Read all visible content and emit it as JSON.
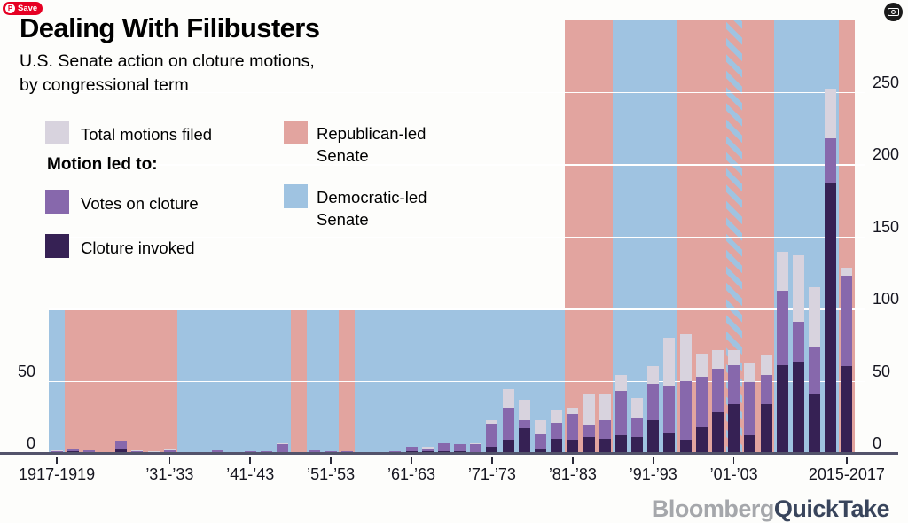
{
  "save_button": {
    "label": "Save",
    "brand_letter": "P"
  },
  "header": {
    "title": "Dealing With Filibusters",
    "subtitle_line1": "U.S. Senate action on cloture motions,",
    "subtitle_line2": "by congressional term"
  },
  "legend": {
    "total_label": "Total motions filed",
    "motion_header": "Motion led to:",
    "votes_label": "Votes on cloture",
    "invoked_label": "Cloture invoked",
    "republican_label": "Republican-led Senate",
    "democratic_label": "Democratic-led Senate"
  },
  "colors": {
    "total_filed": "#d8d3de",
    "votes_on_cloture": "#8768ac",
    "cloture_invoked": "#362154",
    "republican_band": "#e2a49f",
    "democratic_band": "#9fc3e1",
    "split_band_stripe": "#9fc3e1",
    "gridline": "#ffffff",
    "axis_line": "#53536b",
    "save_red": "#e60023",
    "logo_gray": "#a5a7ab",
    "logo_dark": "#39455c",
    "icon_circle": "#1b1b1b"
  },
  "footer": {
    "brand": "Bloomberg",
    "product": "QuickTake"
  },
  "chart_data": {
    "type": "bar",
    "subtype": "stacked",
    "title": "Dealing With Filibusters",
    "series_names": [
      "Total motions filed",
      "Votes on cloture",
      "Cloture invoked"
    ],
    "background_bands_legend": {
      "R": "Republican-led Senate",
      "D": "Democratic-led Senate",
      "S": "Split control (striped)"
    },
    "y_axis": {
      "min": 0,
      "max": 300,
      "left_ticks": [
        0,
        50
      ],
      "right_ticks": [
        0,
        50,
        100,
        150,
        200,
        250
      ],
      "grid_values": [
        50,
        100,
        150,
        200,
        250
      ]
    },
    "x_axis": {
      "ticks": [
        {
          "index": 0,
          "label": "1917-1919"
        },
        {
          "index": 7,
          "label": "’31-’33"
        },
        {
          "index": 12,
          "label": "’41-’43"
        },
        {
          "index": 17,
          "label": "’51-’53"
        },
        {
          "index": 22,
          "label": "’61-’63"
        },
        {
          "index": 27,
          "label": "’71-’73"
        },
        {
          "index": 32,
          "label": "’81-’83"
        },
        {
          "index": 37,
          "label": "’91-’93"
        },
        {
          "index": 42,
          "label": "’01-’03"
        },
        {
          "index": 49,
          "label": "2015-2017"
        }
      ]
    },
    "terms": [
      {
        "years": "1917-1919",
        "party": "D",
        "filed": 2,
        "votes": 1,
        "invoked": 0
      },
      {
        "years": "1919-1921",
        "party": "R",
        "filed": 3,
        "votes": 3,
        "invoked": 1
      },
      {
        "years": "1921-1923",
        "party": "R",
        "filed": 2,
        "votes": 2,
        "invoked": 0
      },
      {
        "years": "1923-1925",
        "party": "R",
        "filed": 0,
        "votes": 0,
        "invoked": 0
      },
      {
        "years": "1925-1927",
        "party": "R",
        "filed": 8,
        "votes": 8,
        "invoked": 3
      },
      {
        "years": "1927-1929",
        "party": "R",
        "filed": 2,
        "votes": 1,
        "invoked": 0
      },
      {
        "years": "1929-1931",
        "party": "R",
        "filed": 1,
        "votes": 0,
        "invoked": 0
      },
      {
        "years": "1931-1933",
        "party": "R",
        "filed": 3,
        "votes": 2,
        "invoked": 0
      },
      {
        "years": "1933-1935",
        "party": "D",
        "filed": 0,
        "votes": 0,
        "invoked": 0
      },
      {
        "years": "1935-1937",
        "party": "D",
        "filed": 0,
        "votes": 0,
        "invoked": 0
      },
      {
        "years": "1937-1939",
        "party": "D",
        "filed": 2,
        "votes": 2,
        "invoked": 0
      },
      {
        "years": "1939-1941",
        "party": "D",
        "filed": 0,
        "votes": 0,
        "invoked": 0
      },
      {
        "years": "1941-1943",
        "party": "D",
        "filed": 1,
        "votes": 1,
        "invoked": 0
      },
      {
        "years": "1943-1945",
        "party": "D",
        "filed": 1,
        "votes": 1,
        "invoked": 0
      },
      {
        "years": "1945-1947",
        "party": "D",
        "filed": 7,
        "votes": 6,
        "invoked": 0
      },
      {
        "years": "1947-1949",
        "party": "R",
        "filed": 0,
        "votes": 0,
        "invoked": 0
      },
      {
        "years": "1949-1951",
        "party": "D",
        "filed": 2,
        "votes": 2,
        "invoked": 0
      },
      {
        "years": "1951-1953",
        "party": "D",
        "filed": 1,
        "votes": 1,
        "invoked": 0
      },
      {
        "years": "1953-1955",
        "party": "R",
        "filed": 1,
        "votes": 1,
        "invoked": 0
      },
      {
        "years": "1955-1957",
        "party": "D",
        "filed": 0,
        "votes": 0,
        "invoked": 0
      },
      {
        "years": "1957-1959",
        "party": "D",
        "filed": 0,
        "votes": 0,
        "invoked": 0
      },
      {
        "years": "1959-1961",
        "party": "D",
        "filed": 1,
        "votes": 1,
        "invoked": 0
      },
      {
        "years": "1961-1963",
        "party": "D",
        "filed": 4,
        "votes": 4,
        "invoked": 1
      },
      {
        "years": "1963-1965",
        "party": "D",
        "filed": 4,
        "votes": 3,
        "invoked": 1
      },
      {
        "years": "1965-1967",
        "party": "D",
        "filed": 7,
        "votes": 7,
        "invoked": 1
      },
      {
        "years": "1967-1969",
        "party": "D",
        "filed": 6,
        "votes": 6,
        "invoked": 1
      },
      {
        "years": "1969-1971",
        "party": "D",
        "filed": 7,
        "votes": 6,
        "invoked": 0
      },
      {
        "years": "1971-1973",
        "party": "D",
        "filed": 23,
        "votes": 20,
        "invoked": 4
      },
      {
        "years": "1973-1975",
        "party": "D",
        "filed": 44,
        "votes": 31,
        "invoked": 9
      },
      {
        "years": "1975-1977",
        "party": "D",
        "filed": 37,
        "votes": 23,
        "invoked": 17
      },
      {
        "years": "1977-1979",
        "party": "D",
        "filed": 23,
        "votes": 13,
        "invoked": 3
      },
      {
        "years": "1979-1981",
        "party": "D",
        "filed": 30,
        "votes": 21,
        "invoked": 10
      },
      {
        "years": "1981-1983",
        "party": "R",
        "filed": 31,
        "votes": 27,
        "invoked": 9
      },
      {
        "years": "1983-1985",
        "party": "R",
        "filed": 41,
        "votes": 19,
        "invoked": 11
      },
      {
        "years": "1985-1987",
        "party": "R",
        "filed": 41,
        "votes": 23,
        "invoked": 10
      },
      {
        "years": "1987-1989",
        "party": "D",
        "filed": 54,
        "votes": 43,
        "invoked": 12
      },
      {
        "years": "1989-1991",
        "party": "D",
        "filed": 38,
        "votes": 24,
        "invoked": 11
      },
      {
        "years": "1991-1993",
        "party": "D",
        "filed": 60,
        "votes": 48,
        "invoked": 23
      },
      {
        "years": "1993-1995",
        "party": "D",
        "filed": 80,
        "votes": 46,
        "invoked": 14
      },
      {
        "years": "1995-1997",
        "party": "R",
        "filed": 82,
        "votes": 50,
        "invoked": 9
      },
      {
        "years": "1997-1999",
        "party": "R",
        "filed": 69,
        "votes": 53,
        "invoked": 18
      },
      {
        "years": "1999-2001",
        "party": "R",
        "filed": 71,
        "votes": 58,
        "invoked": 28
      },
      {
        "years": "2001-2003",
        "party": "S",
        "filed": 71,
        "votes": 61,
        "invoked": 34
      },
      {
        "years": "2003-2005",
        "party": "R",
        "filed": 62,
        "votes": 49,
        "invoked": 12
      },
      {
        "years": "2005-2007",
        "party": "R",
        "filed": 68,
        "votes": 54,
        "invoked": 34
      },
      {
        "years": "2007-2009",
        "party": "D",
        "filed": 139,
        "votes": 112,
        "invoked": 61
      },
      {
        "years": "2009-2011",
        "party": "D",
        "filed": 137,
        "votes": 91,
        "invoked": 63
      },
      {
        "years": "2011-2013",
        "party": "D",
        "filed": 115,
        "votes": 73,
        "invoked": 41
      },
      {
        "years": "2013-2015",
        "party": "D",
        "filed": 252,
        "votes": 218,
        "invoked": 187
      },
      {
        "years": "2015-2017",
        "party": "R",
        "filed": 128,
        "votes": 123,
        "invoked": 60
      }
    ]
  }
}
